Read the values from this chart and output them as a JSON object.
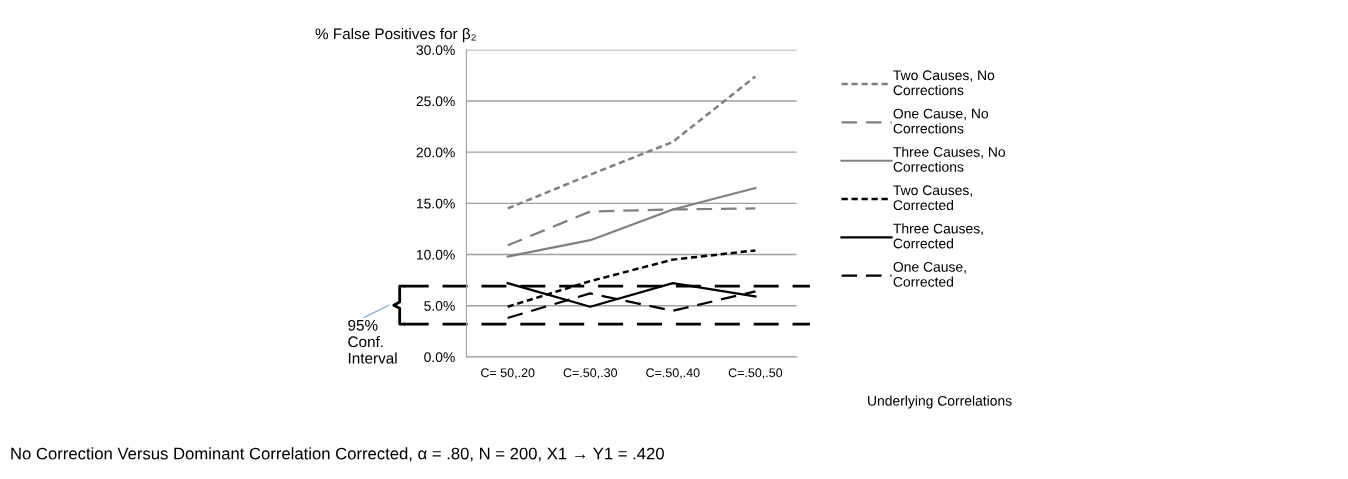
{
  "chart_data": {
    "type": "line",
    "ylabel": "% False Positives for β₂",
    "categories": [
      "C= 50,.20",
      "C=.50,.30",
      "C=.50,.40",
      "C=.50,.50"
    ],
    "series": [
      {
        "name": "Two Causes, No Corrections",
        "color": "#808080",
        "line_style": "dotted",
        "values": [
          14.5,
          17.8,
          21.0,
          27.4
        ]
      },
      {
        "name": "One Cause, No Corrections",
        "color": "#808080",
        "line_style": "dashed",
        "values": [
          10.9,
          14.2,
          14.4,
          14.5
        ]
      },
      {
        "name": "Three Causes, No Corrections",
        "color": "#808080",
        "line_style": "solid",
        "values": [
          9.8,
          11.4,
          14.4,
          16.5
        ]
      },
      {
        "name": "Two Causes, Corrected",
        "color": "#000000",
        "line_style": "dotted",
        "values": [
          4.9,
          7.4,
          9.5,
          10.4
        ]
      },
      {
        "name": "Three Causes, Corrected",
        "color": "#000000",
        "line_style": "solid",
        "values": [
          7.2,
          4.9,
          7.2,
          5.9
        ]
      },
      {
        "name": "One Cause, Corrected",
        "color": "#000000",
        "line_style": "dashed",
        "values": [
          3.8,
          6.2,
          4.5,
          6.4
        ]
      }
    ],
    "ylim": [
      0,
      30
    ],
    "yticks": [
      {
        "value": 0,
        "label": "0.0%"
      },
      {
        "value": 5,
        "label": "5.0%"
      },
      {
        "value": 10,
        "label": "10.0%"
      },
      {
        "value": 15,
        "label": "15.0%"
      },
      {
        "value": 20,
        "label": "20.0%"
      },
      {
        "value": 25,
        "label": "25.0%"
      },
      {
        "value": 30,
        "label": "30.0%"
      }
    ],
    "ref_lines": [
      {
        "axis": "y",
        "value": 6.9,
        "color": "#000000",
        "line_style": "dashed"
      },
      {
        "axis": "y",
        "value": 3.2,
        "color": "#000000",
        "line_style": "dashed",
        "label": "95%\nConf.\nInterval"
      }
    ],
    "grid": "y",
    "legend": "right",
    "annotations": [
      "Underlying Correlations",
      "No Correction Versus Dominant Correlation Corrected, α = .80, N = 200, X1 → Y1 = .420"
    ]
  }
}
